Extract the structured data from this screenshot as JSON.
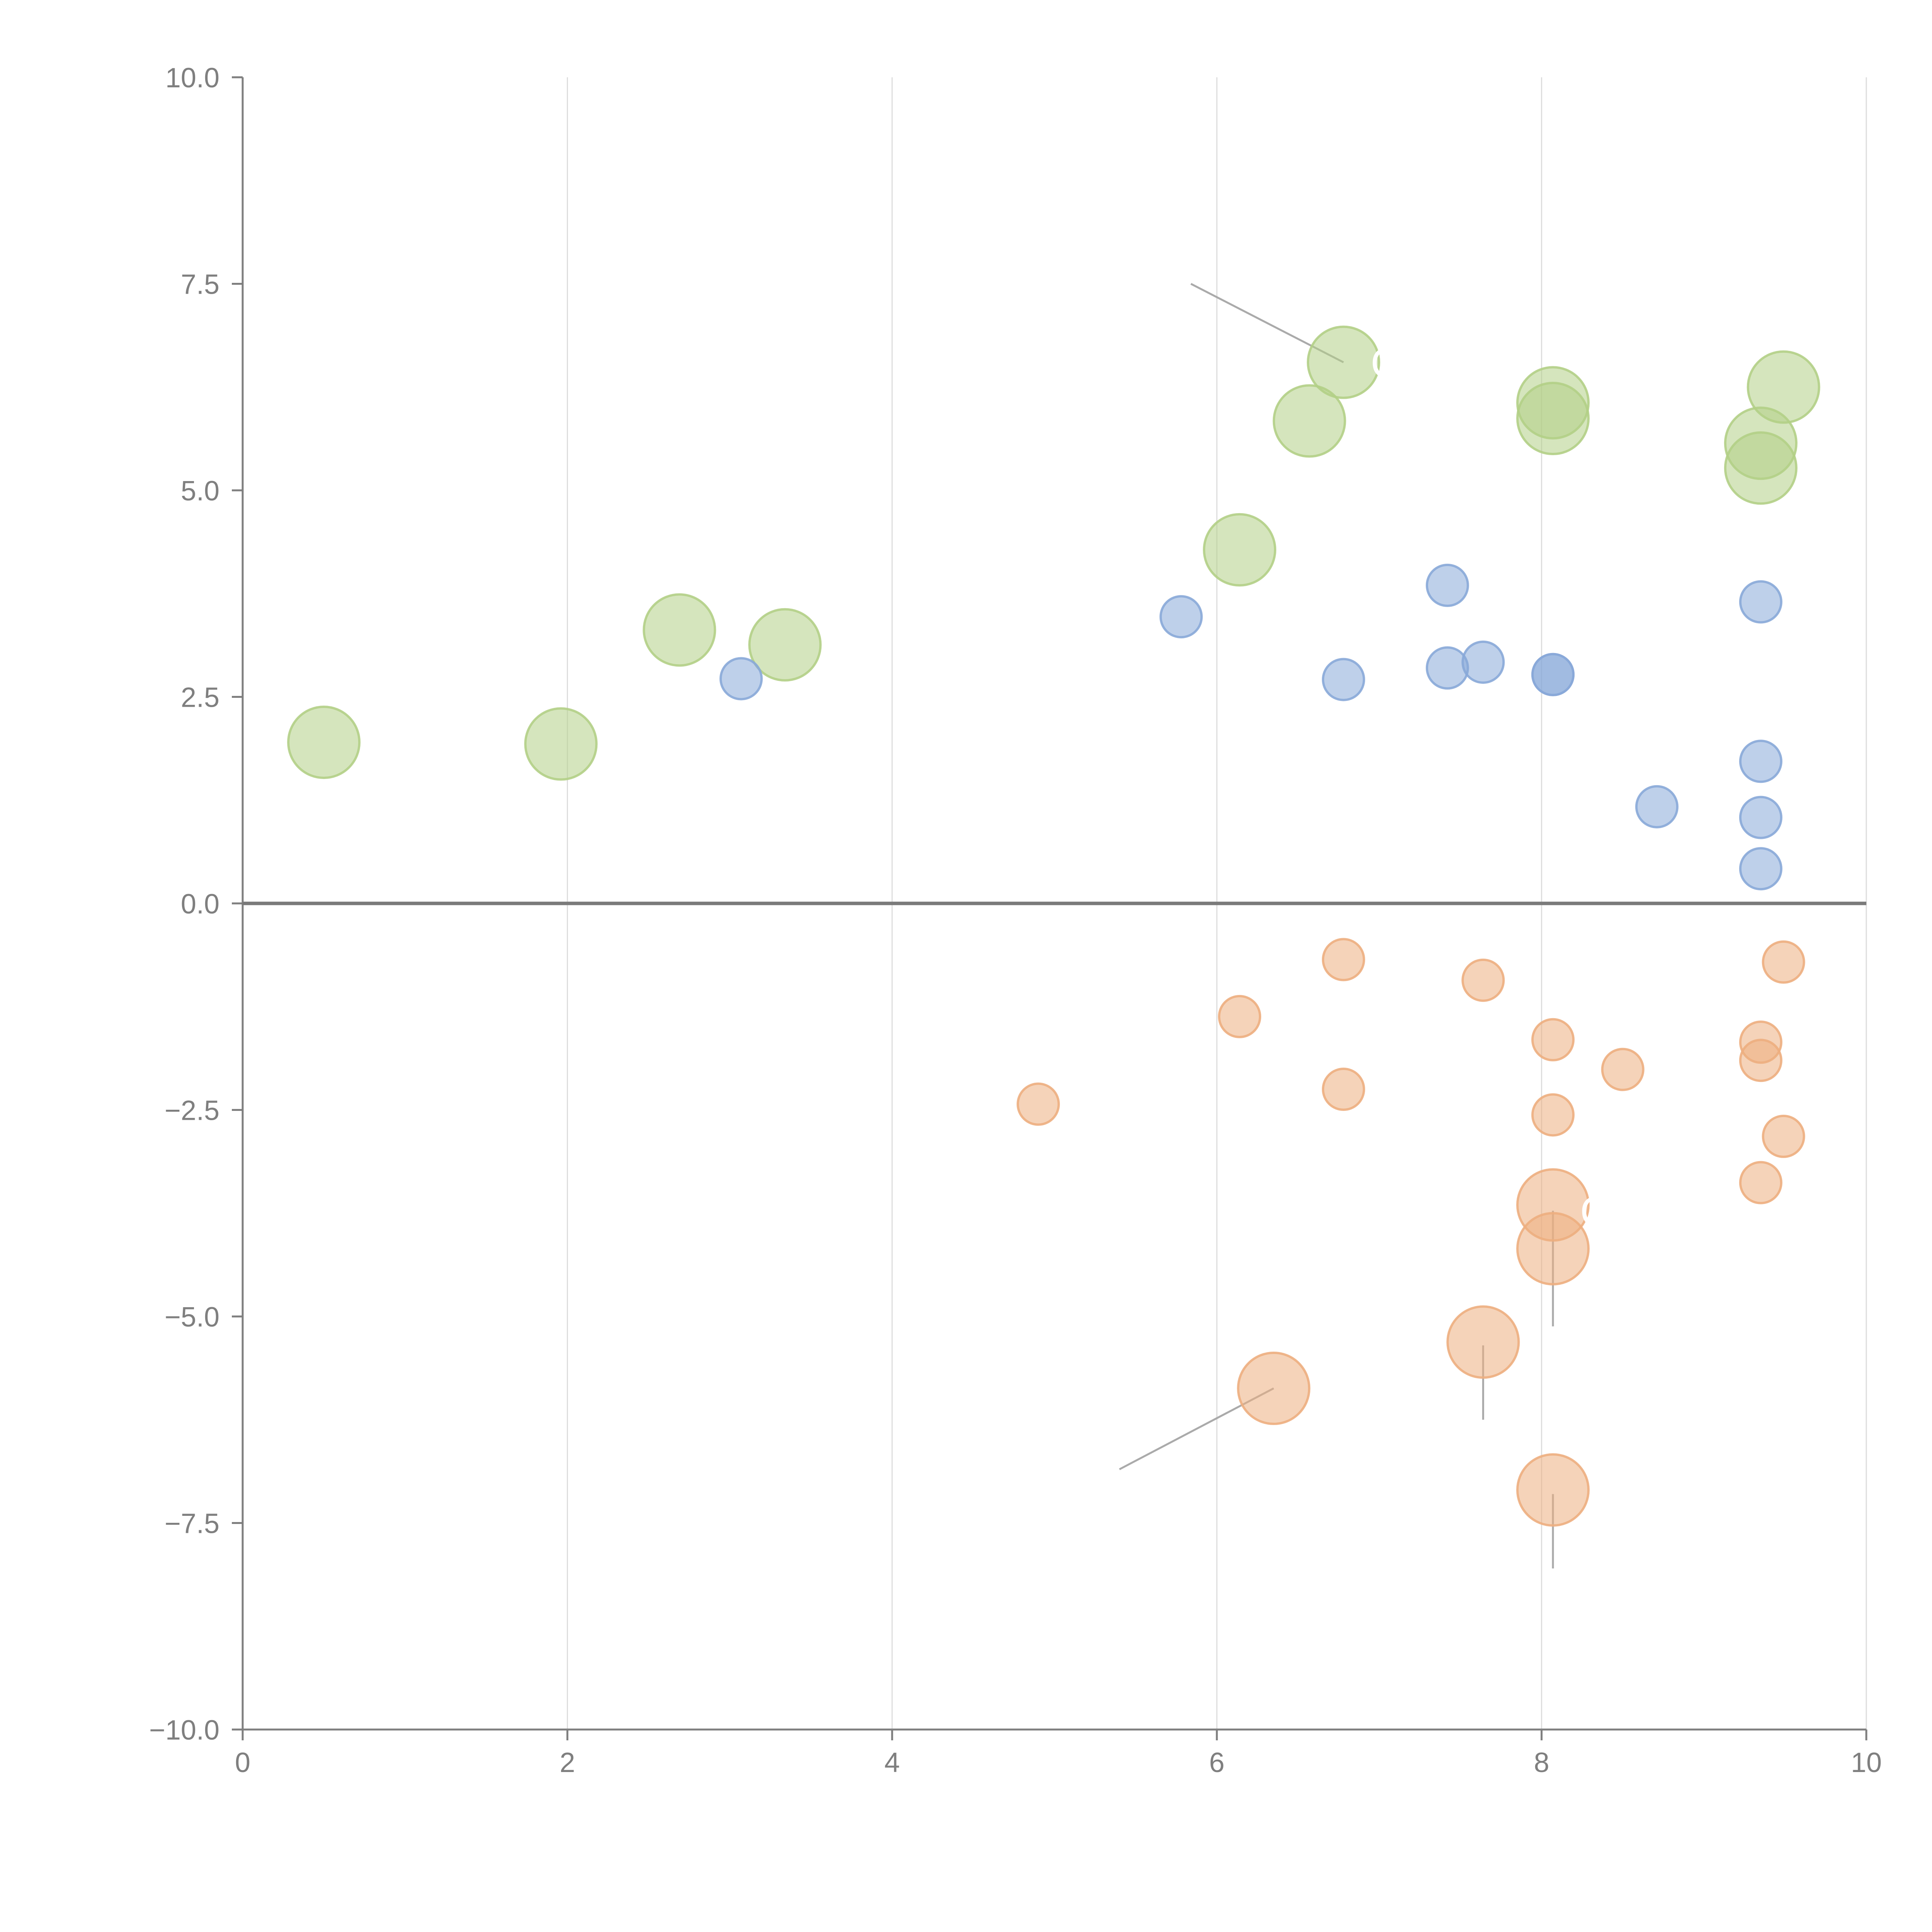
{
  "chart_data": {
    "type": "scatter",
    "title": "",
    "xlabel": "",
    "ylabel": "",
    "xlim": [
      0,
      10
    ],
    "ylim": [
      -10,
      10
    ],
    "x_ticks": [
      0,
      2,
      4,
      6,
      8,
      10
    ],
    "x_tick_labels": [
      "0",
      "2",
      "4",
      "6",
      "8",
      "10"
    ],
    "y_ticks": [
      -10,
      -7.5,
      -5,
      -2.5,
      0,
      2.5,
      5,
      7.5,
      10
    ],
    "y_tick_labels": [
      "−10.0",
      "−7.5",
      "−5.0",
      "−2.5",
      "0.0",
      "2.5",
      "5.0",
      "7.5",
      "10.0"
    ],
    "grid": "vertical",
    "zero_line": 0,
    "series": [
      {
        "name": "green",
        "color": "#b3cf86",
        "size": "large",
        "points": [
          {
            "x": 0.5,
            "y": 1.95
          },
          {
            "x": 1.96,
            "y": 1.93
          },
          {
            "x": 2.69,
            "y": 3.31
          },
          {
            "x": 3.34,
            "y": 3.13
          },
          {
            "x": 6.14,
            "y": 4.28
          },
          {
            "x": 6.57,
            "y": 5.84
          },
          {
            "x": 6.78,
            "y": 6.55
          },
          {
            "x": 8.07,
            "y": 6.06
          },
          {
            "x": 8.07,
            "y": 5.87
          },
          {
            "x": 9.35,
            "y": 5.57
          },
          {
            "x": 9.49,
            "y": 6.25
          },
          {
            "x": 9.35,
            "y": 5.27
          }
        ]
      },
      {
        "name": "blue",
        "color": "#88a9d8",
        "size": "small",
        "points": [
          {
            "x": 3.07,
            "y": 2.72
          },
          {
            "x": 5.78,
            "y": 3.47
          },
          {
            "x": 6.78,
            "y": 2.71
          },
          {
            "x": 7.42,
            "y": 3.85
          },
          {
            "x": 7.42,
            "y": 2.85
          },
          {
            "x": 7.64,
            "y": 2.92
          },
          {
            "x": 8.07,
            "y": 2.77
          },
          {
            "x": 8.07,
            "y": 2.77
          },
          {
            "x": 8.71,
            "y": 1.17
          },
          {
            "x": 9.35,
            "y": 3.65
          },
          {
            "x": 9.35,
            "y": 1.72
          },
          {
            "x": 9.35,
            "y": 1.04
          },
          {
            "x": 9.35,
            "y": 0.42
          }
        ]
      },
      {
        "name": "orange",
        "color": "#edae80",
        "size": "small",
        "points": [
          {
            "x": 4.9,
            "y": -2.43
          },
          {
            "x": 6.14,
            "y": -1.37
          },
          {
            "x": 6.78,
            "y": -0.68
          },
          {
            "x": 6.78,
            "y": -2.25
          },
          {
            "x": 7.64,
            "y": -0.93
          },
          {
            "x": 8.07,
            "y": -1.65
          },
          {
            "x": 8.07,
            "y": -2.56
          },
          {
            "x": 8.5,
            "y": -2.01
          },
          {
            "x": 9.35,
            "y": -1.68
          },
          {
            "x": 9.35,
            "y": -1.9
          },
          {
            "x": 9.35,
            "y": -3.38
          },
          {
            "x": 9.49,
            "y": -0.71
          },
          {
            "x": 9.49,
            "y": -2.82
          }
        ]
      },
      {
        "name": "orange-large",
        "color": "#edae80",
        "size": "large",
        "points": [
          {
            "x": 8.07,
            "y": -3.65
          },
          {
            "x": 8.07,
            "y": -4.18
          },
          {
            "x": 7.64,
            "y": -5.31
          },
          {
            "x": 6.35,
            "y": -5.87
          },
          {
            "x": 8.07,
            "y": -7.1
          }
        ]
      }
    ],
    "annotations": [
      {
        "text": "C",
        "anchor_x": 6.78,
        "anchor_y": 6.55,
        "end_x": 5.84,
        "end_y": 7.5,
        "line_color": "#aaaaaa"
      },
      {
        "text": "C",
        "anchor_x": 8.07,
        "anchor_y": -3.72,
        "end_x": 8.07,
        "end_y": -5.12,
        "line_color": "#aaaaaa"
      },
      {
        "text": "",
        "anchor_x": 7.64,
        "anchor_y": -5.35,
        "end_x": 7.64,
        "end_y": -6.25,
        "line_color": "#aaaaaa"
      },
      {
        "text": "",
        "anchor_x": 6.35,
        "anchor_y": -5.87,
        "end_x": 5.4,
        "end_y": -6.85,
        "line_color": "#aaaaaa"
      },
      {
        "text": "",
        "anchor_x": 8.07,
        "anchor_y": -7.15,
        "end_x": 8.07,
        "end_y": -8.05,
        "line_color": "#aaaaaa"
      }
    ],
    "axis_color": "#7f7f7f",
    "grid_color": "#dddddd"
  }
}
